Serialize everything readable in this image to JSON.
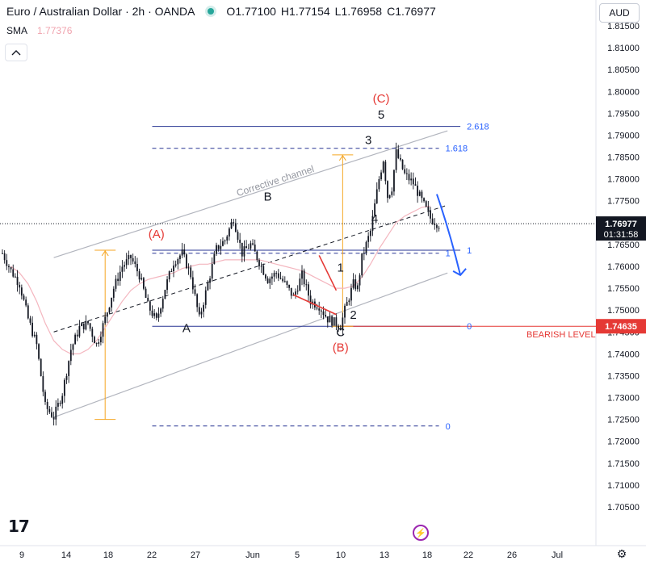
{
  "header": {
    "symbol": "Euro / Australian Dollar · 2h · OANDA",
    "ohlc": [
      {
        "label": "O",
        "value": "1.77100"
      },
      {
        "label": "H",
        "value": "1.77154"
      },
      {
        "label": "L",
        "value": "1.76958"
      },
      {
        "label": "C",
        "value": "1.76977"
      }
    ]
  },
  "indicator": {
    "label": "SMA",
    "value": "1.77376"
  },
  "currency_button": "AUD",
  "colors": {
    "candle": "#131722",
    "sma": "#f4b6bf",
    "channel": "#b2b5be",
    "navy": "#283593",
    "fib_text": "#2962ff",
    "orange": "#f5a623",
    "red": "#e53935",
    "arrow": "#2962ff",
    "label_bg": "#131722"
  },
  "chart_data": {
    "type": "candlestick",
    "x_ticks": [
      "9",
      "14",
      "18",
      "22",
      "27",
      "Jun",
      "5",
      "10",
      "13",
      "18",
      "22",
      "26",
      "Jul"
    ],
    "y_ticks": [
      "1.81500",
      "1.81000",
      "1.80500",
      "1.80000",
      "1.79500",
      "1.79000",
      "1.78500",
      "1.78000",
      "1.77500",
      "1.77000",
      "1.76500",
      "1.76000",
      "1.75500",
      "1.75000",
      "1.74500",
      "1.74000",
      "1.73500",
      "1.73000",
      "1.72500",
      "1.72000",
      "1.71500",
      "1.71000",
      "1.70500"
    ],
    "ylim": [
      1.703,
      1.8185
    ],
    "price_path": [
      [
        0,
        1.763
      ],
      [
        2,
        1.759
      ],
      [
        4,
        1.756
      ],
      [
        6,
        1.748
      ],
      [
        8,
        1.742
      ],
      [
        10,
        1.728
      ],
      [
        12,
        1.7255
      ],
      [
        14,
        1.731
      ],
      [
        16,
        1.741
      ],
      [
        18,
        1.746
      ],
      [
        20,
        1.747
      ],
      [
        22,
        1.742
      ],
      [
        24,
        1.748
      ],
      [
        26,
        1.755
      ],
      [
        28,
        1.76
      ],
      [
        30,
        1.762
      ],
      [
        32,
        1.758
      ],
      [
        34,
        1.751
      ],
      [
        36,
        1.7475
      ],
      [
        38,
        1.755
      ],
      [
        40,
        1.761
      ],
      [
        42,
        1.763
      ],
      [
        44,
        1.758
      ],
      [
        46,
        1.748
      ],
      [
        48,
        1.756
      ],
      [
        50,
        1.764
      ],
      [
        52,
        1.766
      ],
      [
        54,
        1.771
      ],
      [
        56,
        1.763
      ],
      [
        58,
        1.765
      ],
      [
        60,
        1.761
      ],
      [
        62,
        1.757
      ],
      [
        64,
        1.7585
      ],
      [
        66,
        1.756
      ],
      [
        68,
        1.753
      ],
      [
        70,
        1.758
      ],
      [
        72,
        1.752
      ],
      [
        74,
        1.751
      ],
      [
        76,
        1.748
      ],
      [
        78,
        1.747
      ],
      [
        79,
        1.7463
      ],
      [
        80,
        1.75
      ],
      [
        82,
        1.756
      ],
      [
        83,
        1.755
      ],
      [
        84,
        1.762
      ],
      [
        86,
        1.768
      ],
      [
        88,
        1.78
      ],
      [
        89,
        1.7845
      ],
      [
        90,
        1.776
      ],
      [
        91,
        1.778
      ],
      [
        92,
        1.786
      ],
      [
        94,
        1.781
      ],
      [
        96,
        1.779
      ],
      [
        98,
        1.775
      ],
      [
        100,
        1.771
      ],
      [
        102,
        1.7695
      ]
    ],
    "sma_path": [
      [
        2,
        1.76
      ],
      [
        4,
        1.7585
      ],
      [
        6,
        1.756
      ],
      [
        8,
        1.752
      ],
      [
        10,
        1.747
      ],
      [
        12,
        1.743
      ],
      [
        14,
        1.741
      ],
      [
        16,
        1.74
      ],
      [
        18,
        1.74
      ],
      [
        20,
        1.741
      ],
      [
        22,
        1.743
      ],
      [
        24,
        1.746
      ],
      [
        26,
        1.749
      ],
      [
        28,
        1.752
      ],
      [
        30,
        1.7545
      ],
      [
        32,
        1.756
      ],
      [
        34,
        1.757
      ],
      [
        36,
        1.7575
      ],
      [
        38,
        1.758
      ],
      [
        40,
        1.7585
      ],
      [
        42,
        1.7595
      ],
      [
        44,
        1.76
      ],
      [
        46,
        1.7605
      ],
      [
        48,
        1.7605
      ],
      [
        50,
        1.761
      ],
      [
        52,
        1.7615
      ],
      [
        54,
        1.7615
      ],
      [
        56,
        1.7615
      ],
      [
        58,
        1.7615
      ],
      [
        60,
        1.7615
      ],
      [
        62,
        1.761
      ],
      [
        64,
        1.7605
      ],
      [
        66,
        1.76
      ],
      [
        68,
        1.7595
      ],
      [
        70,
        1.759
      ],
      [
        72,
        1.758
      ],
      [
        74,
        1.757
      ],
      [
        76,
        1.756
      ],
      [
        78,
        1.755
      ],
      [
        80,
        1.755
      ],
      [
        82,
        1.7555
      ],
      [
        84,
        1.7575
      ],
      [
        86,
        1.7605
      ],
      [
        88,
        1.764
      ],
      [
        90,
        1.767
      ],
      [
        92,
        1.77
      ],
      [
        94,
        1.7715
      ],
      [
        96,
        1.7725
      ],
      [
        98,
        1.7735
      ],
      [
        100,
        1.7738
      ]
    ],
    "channel": {
      "upper": [
        [
          12,
          1.762
        ],
        [
          104,
          1.791
        ]
      ],
      "middle": [
        [
          12,
          1.745
        ],
        [
          104,
          1.774
        ]
      ],
      "lower": [
        [
          12,
          1.7255
        ],
        [
          104,
          1.7585
        ]
      ],
      "label": "Corrective channel"
    },
    "fib_levels": [
      {
        "ratio": "2.618",
        "price": 1.792,
        "x": [
          35,
          107
        ],
        "style": "solid"
      },
      {
        "ratio": "1.618",
        "price": 1.787,
        "x": [
          35,
          102
        ],
        "style": "dashed"
      },
      {
        "ratio": "1",
        "price": 1.7637,
        "x": [
          35,
          107
        ],
        "style": "solid"
      },
      {
        "ratio": "1",
        "price": 1.763,
        "x": [
          35,
          102
        ],
        "style": "dashed"
      },
      {
        "ratio": "0",
        "price": 1.7463,
        "x": [
          35,
          107
        ],
        "style": "solid"
      },
      {
        "ratio": "0",
        "price": 1.7235,
        "x": [
          35,
          102
        ],
        "style": "dashed"
      }
    ],
    "bearish_level": {
      "price": 1.7463,
      "label": "BEARISH LEVEL",
      "price_label": "1.74635"
    },
    "last_price": {
      "value": "1.76977",
      "countdown": "01:31:58",
      "price": 1.76977
    },
    "measure_moves": [
      {
        "x": 24,
        "from": 1.725,
        "to": 1.7637
      },
      {
        "x": 79.5,
        "from": 1.7463,
        "to": 1.7855
      }
    ],
    "wave_labels": [
      {
        "text": "(C)",
        "x": 88.5,
        "price": 1.7975,
        "color": "red"
      },
      {
        "text": "5",
        "x": 88.5,
        "price": 1.7938,
        "color": "black"
      },
      {
        "text": "3",
        "x": 85.5,
        "price": 1.788,
        "color": "black"
      },
      {
        "text": "4",
        "x": 87,
        "price": 1.77,
        "color": "black"
      },
      {
        "text": "B",
        "x": 62,
        "price": 1.775,
        "color": "black"
      },
      {
        "text": "(A)",
        "x": 36,
        "price": 1.7665,
        "color": "red"
      },
      {
        "text": "1",
        "x": 79,
        "price": 1.7588,
        "color": "black"
      },
      {
        "text": "2",
        "x": 82,
        "price": 1.748,
        "color": "black"
      },
      {
        "text": "A",
        "x": 43,
        "price": 1.745,
        "color": "black"
      },
      {
        "text": "C",
        "x": 79,
        "price": 1.744,
        "color": "black"
      },
      {
        "text": "(B)",
        "x": 79,
        "price": 1.7405,
        "color": "red"
      }
    ]
  }
}
